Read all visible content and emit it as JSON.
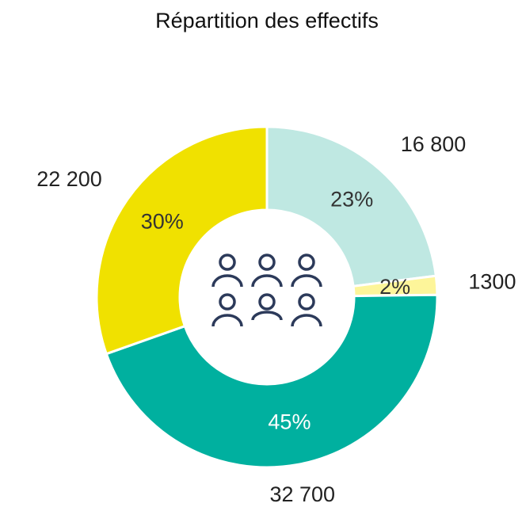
{
  "chart_data": {
    "type": "donut",
    "title": "Répartition des effectifs",
    "values": [
      16800,
      1300,
      32700,
      22200
    ],
    "value_labels": [
      "16 800",
      "1300",
      "32 700",
      "22 200"
    ],
    "percent_labels": [
      "23%",
      "2%",
      "45%",
      "30%"
    ],
    "colors": [
      "#bfe8e2",
      "#fdf59a",
      "#00b09f",
      "#f0e100"
    ]
  }
}
